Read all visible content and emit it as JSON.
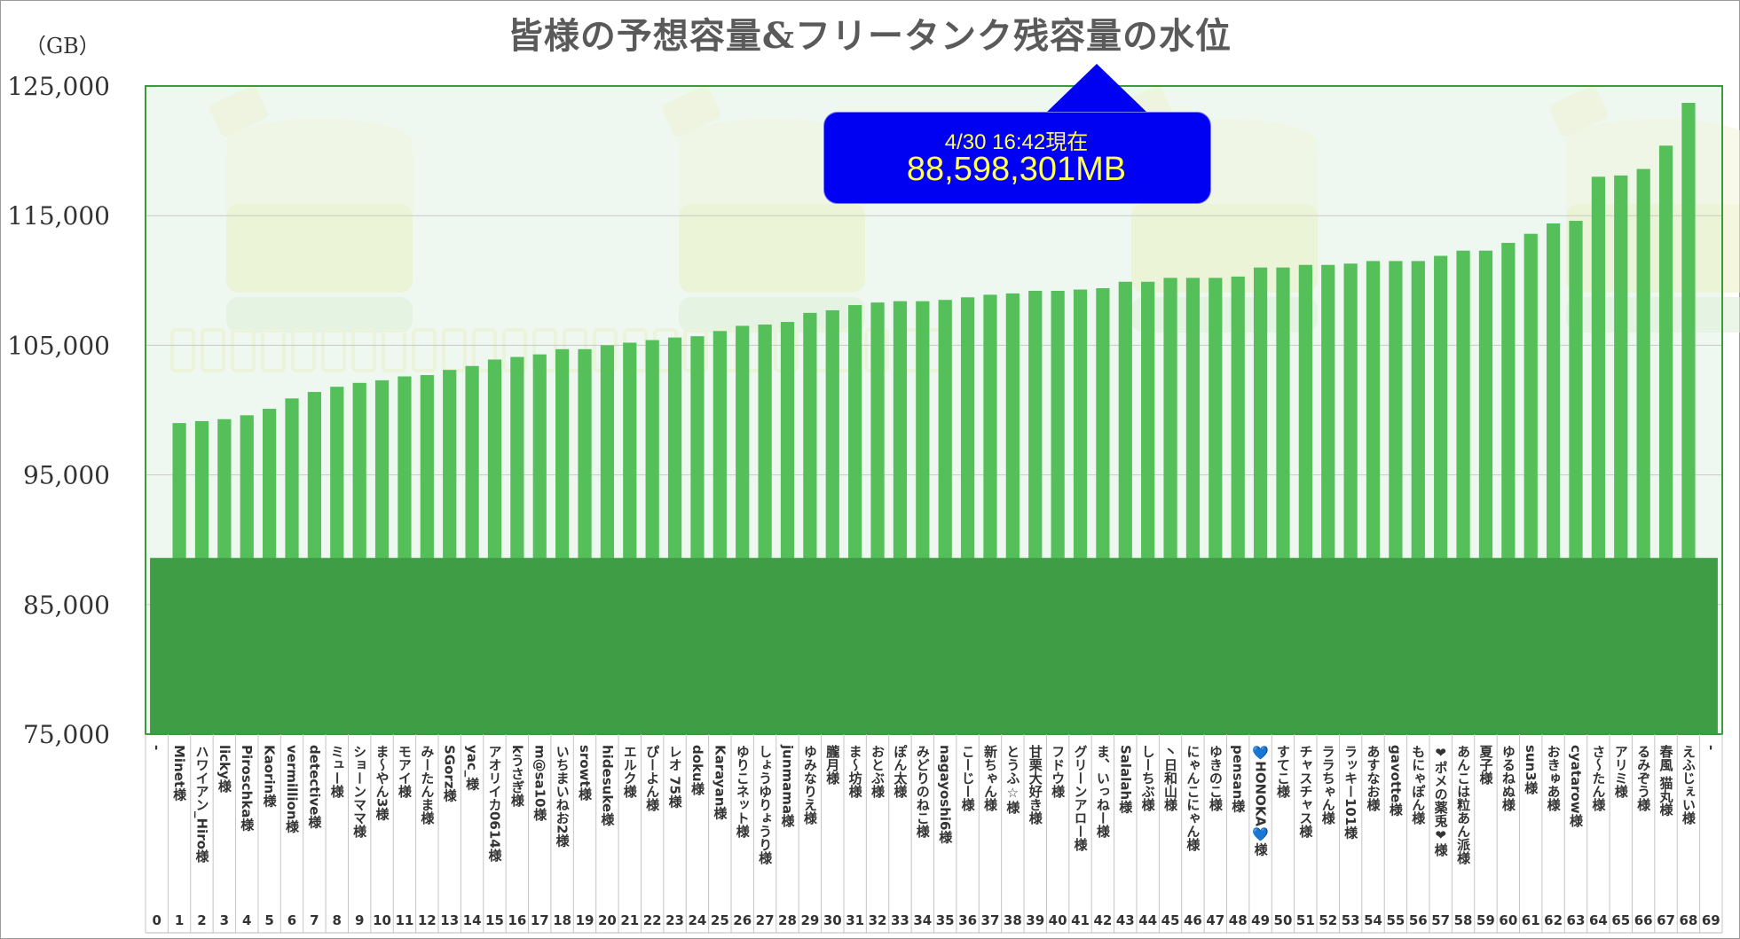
{
  "chart_data": {
    "type": "bar",
    "title": "皆様の予想容量&フリータンク残容量の水位",
    "ylabel": "（GB）",
    "ylim": [
      75000,
      125000
    ],
    "yticks": [
      75000,
      85000,
      95000,
      105000,
      115000,
      125000
    ],
    "ytick_labels": [
      "75,000",
      "85,000",
      "95,000",
      "105,000",
      "115,000",
      "125,000"
    ],
    "grid": true,
    "legend": "none",
    "colors": {
      "bar": "#55c05a",
      "level": "#3f9e45",
      "plot_bg": "#eef8f1",
      "axis": "#3c9a3c",
      "callout": "#0000f2"
    },
    "level": {
      "value": 88598,
      "time_label": "4/30 16:42現在",
      "value_label": "88,598,301MB"
    },
    "categories": [
      {
        "index": "0",
        "name": "-",
        "value": null
      },
      {
        "index": "1",
        "name": "Minet様",
        "value": 99000
      },
      {
        "index": "2",
        "name": "ハワイアン_Hiro様",
        "value": 99150
      },
      {
        "index": "3",
        "name": "licky様",
        "value": 99300
      },
      {
        "index": "4",
        "name": "Piroschka様",
        "value": 99600
      },
      {
        "index": "5",
        "name": "Kaorin様",
        "value": 100100
      },
      {
        "index": "6",
        "name": "vermillion様",
        "value": 100900
      },
      {
        "index": "7",
        "name": "detective様",
        "value": 101400
      },
      {
        "index": "8",
        "name": "ミュー様",
        "value": 101800
      },
      {
        "index": "9",
        "name": "ショーンママ様",
        "value": 102100
      },
      {
        "index": "10",
        "name": "ま〜やん3様",
        "value": 102300
      },
      {
        "index": "11",
        "name": "モアイ様",
        "value": 102600
      },
      {
        "index": "12",
        "name": "みーたんま様",
        "value": 102700
      },
      {
        "index": "13",
        "name": "SGorz様",
        "value": 103100
      },
      {
        "index": "14",
        "name": "yac_様",
        "value": 103400
      },
      {
        "index": "15",
        "name": "アオリイカ0614様",
        "value": 103900
      },
      {
        "index": "16",
        "name": "kうさぎ様",
        "value": 104100
      },
      {
        "index": "17",
        "name": "m@sa10様",
        "value": 104300
      },
      {
        "index": "18",
        "name": "いちまいねお2様",
        "value": 104700
      },
      {
        "index": "19",
        "name": "srowt様",
        "value": 104700
      },
      {
        "index": "20",
        "name": "hidesuke様",
        "value": 105000
      },
      {
        "index": "21",
        "name": "エルク様",
        "value": 105200
      },
      {
        "index": "22",
        "name": "ぴーよん様",
        "value": 105400
      },
      {
        "index": "23",
        "name": "レオ 75様",
        "value": 105600
      },
      {
        "index": "24",
        "name": "doku様",
        "value": 105700
      },
      {
        "index": "25",
        "name": "Karayan様",
        "value": 106100
      },
      {
        "index": "26",
        "name": "ゆりこネット様",
        "value": 106500
      },
      {
        "index": "27",
        "name": "しょうゆりょうり様",
        "value": 106600
      },
      {
        "index": "28",
        "name": "junmama様",
        "value": 106800
      },
      {
        "index": "29",
        "name": "ゆみなりえ様",
        "value": 107500
      },
      {
        "index": "30",
        "name": "朧月様",
        "value": 107700
      },
      {
        "index": "31",
        "name": "ま〜坊様",
        "value": 108100
      },
      {
        "index": "32",
        "name": "おとぶ様",
        "value": 108300
      },
      {
        "index": "33",
        "name": "ぽん太様",
        "value": 108400
      },
      {
        "index": "34",
        "name": "みどりのねこ様",
        "value": 108400
      },
      {
        "index": "35",
        "name": "nagayoshi6様",
        "value": 108500
      },
      {
        "index": "36",
        "name": "こーじー様",
        "value": 108700
      },
      {
        "index": "37",
        "name": "新ちゃん様",
        "value": 108900
      },
      {
        "index": "38",
        "name": "とうふ☆様",
        "value": 109000
      },
      {
        "index": "39",
        "name": "甘栗大好き様",
        "value": 109200
      },
      {
        "index": "40",
        "name": "フドウ様",
        "value": 109200
      },
      {
        "index": "41",
        "name": "グリーンアロー様",
        "value": 109300
      },
      {
        "index": "42",
        "name": "ま、いっねー様",
        "value": 109400
      },
      {
        "index": "43",
        "name": "Salalah様",
        "value": 109900
      },
      {
        "index": "44",
        "name": "しーちぶ様",
        "value": 109900
      },
      {
        "index": "45",
        "name": "丶日和山様",
        "value": 110200
      },
      {
        "index": "46",
        "name": "にゃんこにゃん様",
        "value": 110200
      },
      {
        "index": "47",
        "name": "ゆきのこ様",
        "value": 110200
      },
      {
        "index": "48",
        "name": "pensan様",
        "value": 110300
      },
      {
        "index": "49",
        "name": "💙HONOKA💙様",
        "value": 111000
      },
      {
        "index": "50",
        "name": "すてこ様",
        "value": 111000
      },
      {
        "index": "51",
        "name": "チャスチャス様",
        "value": 111200
      },
      {
        "index": "52",
        "name": "ララちゃん様",
        "value": 111200
      },
      {
        "index": "53",
        "name": "ラッキー101様",
        "value": 111300
      },
      {
        "index": "54",
        "name": "あすなお様",
        "value": 111500
      },
      {
        "index": "55",
        "name": "gavotte様",
        "value": 111500
      },
      {
        "index": "56",
        "name": "もにゃぽん様",
        "value": 111500
      },
      {
        "index": "57",
        "name": "❤ポメの薬兎❤様",
        "value": 111900
      },
      {
        "index": "58",
        "name": "あんこは粒あん派様",
        "value": 112300
      },
      {
        "index": "59",
        "name": "夏子様",
        "value": 112300
      },
      {
        "index": "60",
        "name": "ゆるねぬ様",
        "value": 112900
      },
      {
        "index": "61",
        "name": "sun3様",
        "value": 113600
      },
      {
        "index": "62",
        "name": "おきゅあ様",
        "value": 114400
      },
      {
        "index": "63",
        "name": "cyatarow様",
        "value": 114600
      },
      {
        "index": "64",
        "name": "さ〜たん様",
        "value": 118000
      },
      {
        "index": "65",
        "name": "アリミ様",
        "value": 118100
      },
      {
        "index": "66",
        "name": "るみぞう様",
        "value": 118600
      },
      {
        "index": "67",
        "name": "春風 猫丸様",
        "value": 120400
      },
      {
        "index": "68",
        "name": "えふじぇい様",
        "value": 123700
      },
      {
        "index": "69",
        "name": "-",
        "value": null
      }
    ]
  }
}
